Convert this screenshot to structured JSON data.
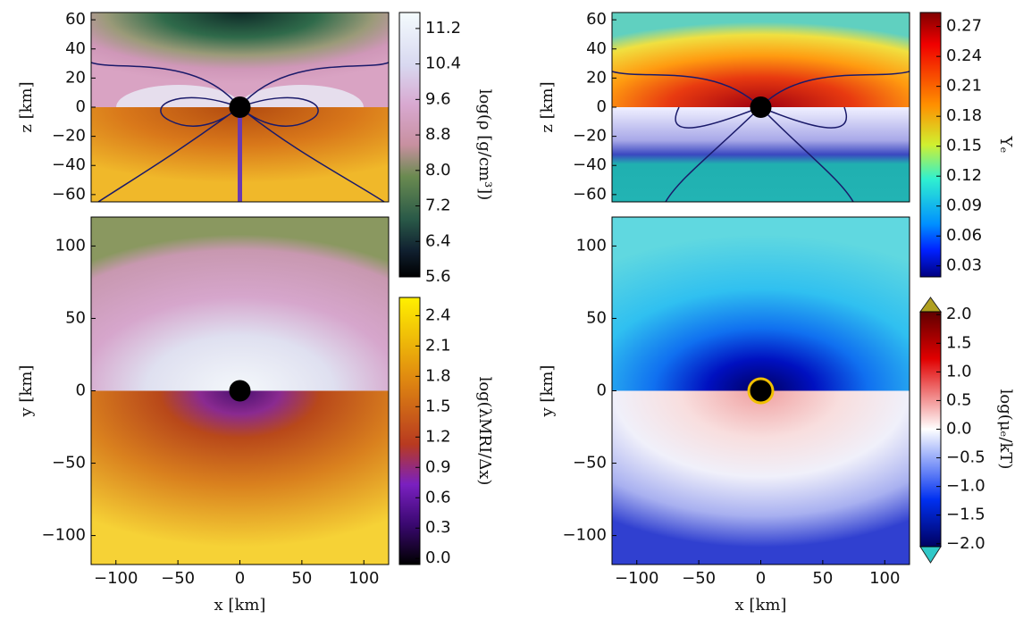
{
  "chart_data": [
    {
      "type": "heatmap",
      "ylabel": "z [km]",
      "xlim": [
        -120,
        120
      ],
      "ylim": [
        -65,
        65
      ],
      "yticks": [
        60,
        40,
        20,
        0,
        {
          "value": -20,
          "label": "−20"
        },
        {
          "value": -40,
          "label": "−40"
        },
        {
          "value": -60,
          "label": "−60"
        }
      ]
    },
    {
      "type": "heatmap",
      "xlabel": "x [km]",
      "ylabel": "y [km]",
      "xlim": [
        -120,
        120
      ],
      "ylim": [
        -120,
        120
      ],
      "xticks": [
        {
          "value": -100,
          "label": "−100"
        },
        {
          "value": -50,
          "label": "−50"
        },
        0,
        50,
        100
      ],
      "yticks": [
        100,
        50,
        0,
        {
          "value": -50,
          "label": "−50"
        },
        {
          "value": -100,
          "label": "−100"
        }
      ]
    },
    {
      "type": "heatmap",
      "ylabel": "z [km]",
      "xlim": [
        -120,
        120
      ],
      "ylim": [
        -65,
        65
      ],
      "yticks": [
        60,
        40,
        20,
        0,
        {
          "value": -20,
          "label": "−20"
        },
        {
          "value": -40,
          "label": "−40"
        },
        {
          "value": -60,
          "label": "−60"
        }
      ]
    },
    {
      "type": "heatmap",
      "xlabel": "x [km]",
      "ylabel": "y [km]",
      "xlim": [
        -120,
        120
      ],
      "ylim": [
        -120,
        120
      ],
      "xticks": [
        {
          "value": -100,
          "label": "−100"
        },
        {
          "value": -50,
          "label": "−50"
        },
        0,
        50,
        100
      ],
      "yticks": [
        100,
        50,
        0,
        {
          "value": -50,
          "label": "−50"
        },
        {
          "value": -100,
          "label": "−100"
        }
      ]
    },
    {
      "type": "colorbar",
      "label": "log(ρ [g/cm³])",
      "clim": [
        5.6,
        11.56
      ],
      "cticks": [
        11.2,
        10.4,
        9.6,
        8.8,
        {
          "value": 8.0,
          "label": "8.0"
        },
        7.2,
        6.4,
        5.6
      ]
    },
    {
      "type": "colorbar",
      "label": "log(λMRI/Δx)",
      "clim": [
        -0.06,
        2.58
      ],
      "cticks": [
        2.4,
        2.1,
        1.8,
        1.5,
        1.2,
        0.9,
        0.6,
        0.3,
        {
          "value": 0.0,
          "label": "0.0"
        }
      ]
    },
    {
      "type": "colorbar",
      "label": "Yₑ",
      "clim": [
        0.019,
        0.284
      ],
      "cticks": [
        0.27,
        0.24,
        0.21,
        0.18,
        0.15,
        0.12,
        0.09,
        0.06,
        0.03
      ]
    },
    {
      "type": "colorbar",
      "label": "log(μₑ/kT)",
      "clim": [
        -2.05,
        2.05
      ],
      "cticks": [
        {
          "value": 2.0,
          "label": "2.0"
        },
        1.5,
        {
          "value": 1.0,
          "label": "1.0"
        },
        0.5,
        {
          "value": 0.0,
          "label": "0.0"
        },
        {
          "value": -0.5,
          "label": "−0.5"
        },
        {
          "value": -1.0,
          "label": "−1.0"
        },
        {
          "value": -1.5,
          "label": "−1.5"
        },
        {
          "value": -2.0,
          "label": "−2.0"
        }
      ]
    }
  ]
}
